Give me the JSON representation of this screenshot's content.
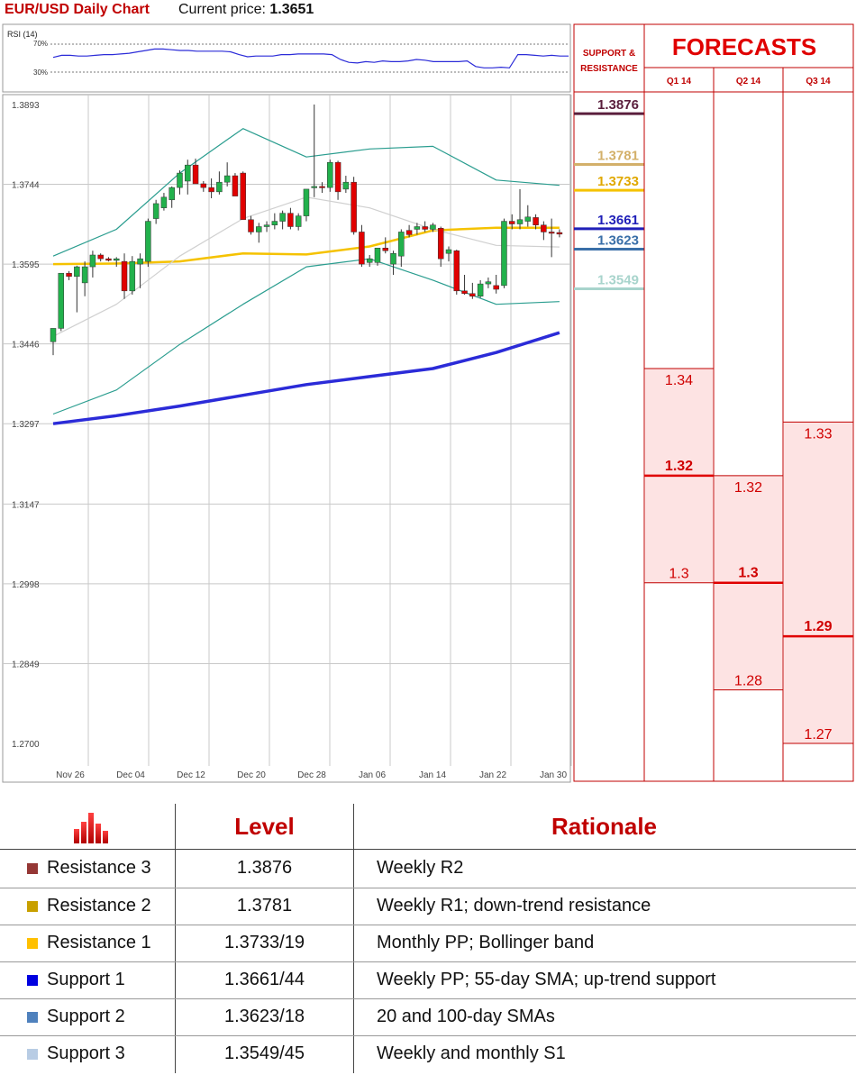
{
  "header": {
    "title": "EUR/USD Daily Chart",
    "price_label": "Current price:",
    "price_value": "1.3651"
  },
  "chart_data": {
    "type": "line",
    "title": "EUR/USD Daily Chart",
    "subplot_label": "RSI (14)",
    "rsi": {
      "ylabels": [
        "70%",
        "30%"
      ],
      "values": [
        51,
        54,
        54,
        53,
        53,
        54,
        55,
        55,
        56,
        57,
        59,
        61,
        63,
        63,
        62,
        61,
        61,
        60,
        60,
        60,
        60,
        59,
        55,
        52,
        53,
        53,
        53,
        55,
        55,
        56,
        56,
        56,
        56,
        55,
        48,
        44,
        43,
        45,
        44,
        46,
        45,
        45,
        46,
        48,
        47,
        45,
        45,
        45,
        45,
        46,
        38,
        36,
        36,
        37,
        36,
        55,
        55,
        54,
        53,
        54,
        53,
        53
      ]
    },
    "y_ticks": [
      "1.3893",
      "1.3744",
      "1.3595",
      "1.3446",
      "1.3297",
      "1.3147",
      "1.2998",
      "1.2849",
      "1.2700"
    ],
    "ylim": [
      1.27,
      1.3893
    ],
    "x_ticks": [
      "Nov 26",
      "Dec 04",
      "Dec 12",
      "Dec 20",
      "Dec 28",
      "Jan 06",
      "Jan 14",
      "Jan 22",
      "Jan 30"
    ],
    "candles": [
      {
        "o": 1.345,
        "h": 1.3475,
        "l": 1.3425,
        "c": 1.3475
      },
      {
        "o": 1.3475,
        "h": 1.3578,
        "l": 1.347,
        "c": 1.3578
      },
      {
        "o": 1.3578,
        "h": 1.3582,
        "l": 1.3565,
        "c": 1.3572
      },
      {
        "o": 1.3572,
        "h": 1.3592,
        "l": 1.3505,
        "c": 1.359
      },
      {
        "o": 1.356,
        "h": 1.36,
        "l": 1.3535,
        "c": 1.359
      },
      {
        "o": 1.359,
        "h": 1.362,
        "l": 1.357,
        "c": 1.3612
      },
      {
        "o": 1.3612,
        "h": 1.3615,
        "l": 1.36,
        "c": 1.3605
      },
      {
        "o": 1.3605,
        "h": 1.3608,
        "l": 1.36,
        "c": 1.3602
      },
      {
        "o": 1.3602,
        "h": 1.3608,
        "l": 1.359,
        "c": 1.3605
      },
      {
        "o": 1.36,
        "h": 1.3615,
        "l": 1.353,
        "c": 1.3545
      },
      {
        "o": 1.3545,
        "h": 1.361,
        "l": 1.3538,
        "c": 1.36
      },
      {
        "o": 1.3595,
        "h": 1.3615,
        "l": 1.355,
        "c": 1.3605
      },
      {
        "o": 1.36,
        "h": 1.368,
        "l": 1.359,
        "c": 1.3675
      },
      {
        "o": 1.368,
        "h": 1.3715,
        "l": 1.367,
        "c": 1.3708
      },
      {
        "o": 1.37,
        "h": 1.3728,
        "l": 1.3695,
        "c": 1.372
      },
      {
        "o": 1.3715,
        "h": 1.374,
        "l": 1.37,
        "c": 1.3738
      },
      {
        "o": 1.3738,
        "h": 1.377,
        "l": 1.3725,
        "c": 1.3765
      },
      {
        "o": 1.375,
        "h": 1.379,
        "l": 1.3725,
        "c": 1.378
      },
      {
        "o": 1.378,
        "h": 1.3792,
        "l": 1.3745,
        "c": 1.3745
      },
      {
        "o": 1.3745,
        "h": 1.375,
        "l": 1.373,
        "c": 1.3738
      },
      {
        "o": 1.3738,
        "h": 1.3755,
        "l": 1.3718,
        "c": 1.373
      },
      {
        "o": 1.373,
        "h": 1.3768,
        "l": 1.3725,
        "c": 1.3748
      },
      {
        "o": 1.3748,
        "h": 1.3785,
        "l": 1.374,
        "c": 1.376
      },
      {
        "o": 1.376,
        "h": 1.3765,
        "l": 1.3725,
        "c": 1.3722
      },
      {
        "o": 1.3765,
        "h": 1.3768,
        "l": 1.368,
        "c": 1.3678
      },
      {
        "o": 1.3678,
        "h": 1.3685,
        "l": 1.365,
        "c": 1.3655
      },
      {
        "o": 1.3655,
        "h": 1.3672,
        "l": 1.3635,
        "c": 1.3665
      },
      {
        "o": 1.3665,
        "h": 1.3675,
        "l": 1.3655,
        "c": 1.3668
      },
      {
        "o": 1.3668,
        "h": 1.369,
        "l": 1.366,
        "c": 1.3675
      },
      {
        "o": 1.3675,
        "h": 1.3695,
        "l": 1.366,
        "c": 1.369
      },
      {
        "o": 1.369,
        "h": 1.37,
        "l": 1.366,
        "c": 1.3665
      },
      {
        "o": 1.3665,
        "h": 1.369,
        "l": 1.3658,
        "c": 1.3685
      },
      {
        "o": 1.3685,
        "h": 1.3735,
        "l": 1.3675,
        "c": 1.3735
      },
      {
        "o": 1.3738,
        "h": 1.3893,
        "l": 1.372,
        "c": 1.374
      },
      {
        "o": 1.374,
        "h": 1.3748,
        "l": 1.3728,
        "c": 1.3738
      },
      {
        "o": 1.3738,
        "h": 1.379,
        "l": 1.373,
        "c": 1.3785
      },
      {
        "o": 1.3785,
        "h": 1.3788,
        "l": 1.3715,
        "c": 1.373
      },
      {
        "o": 1.3735,
        "h": 1.376,
        "l": 1.3728,
        "c": 1.3748
      },
      {
        "o": 1.3748,
        "h": 1.3758,
        "l": 1.365,
        "c": 1.3655
      },
      {
        "o": 1.3655,
        "h": 1.3668,
        "l": 1.359,
        "c": 1.3595
      },
      {
        "o": 1.3598,
        "h": 1.3612,
        "l": 1.359,
        "c": 1.3605
      },
      {
        "o": 1.3598,
        "h": 1.3625,
        "l": 1.3592,
        "c": 1.3625
      },
      {
        "o": 1.3625,
        "h": 1.3645,
        "l": 1.3615,
        "c": 1.362
      },
      {
        "o": 1.3595,
        "h": 1.362,
        "l": 1.3575,
        "c": 1.3615
      },
      {
        "o": 1.361,
        "h": 1.366,
        "l": 1.359,
        "c": 1.3655
      },
      {
        "o": 1.3658,
        "h": 1.3668,
        "l": 1.3645,
        "c": 1.365
      },
      {
        "o": 1.366,
        "h": 1.3672,
        "l": 1.365,
        "c": 1.3665
      },
      {
        "o": 1.3665,
        "h": 1.3675,
        "l": 1.3655,
        "c": 1.366
      },
      {
        "o": 1.366,
        "h": 1.3672,
        "l": 1.3655,
        "c": 1.3668
      },
      {
        "o": 1.3662,
        "h": 1.3665,
        "l": 1.359,
        "c": 1.3605
      },
      {
        "o": 1.3615,
        "h": 1.3628,
        "l": 1.36,
        "c": 1.3622
      },
      {
        "o": 1.362,
        "h": 1.3622,
        "l": 1.3538,
        "c": 1.3545
      },
      {
        "o": 1.3545,
        "h": 1.3575,
        "l": 1.3538,
        "c": 1.354
      },
      {
        "o": 1.354,
        "h": 1.356,
        "l": 1.353,
        "c": 1.3535
      },
      {
        "o": 1.3535,
        "h": 1.3565,
        "l": 1.3532,
        "c": 1.3558
      },
      {
        "o": 1.3558,
        "h": 1.357,
        "l": 1.355,
        "c": 1.3562
      },
      {
        "o": 1.3555,
        "h": 1.3575,
        "l": 1.354,
        "c": 1.3548
      },
      {
        "o": 1.3555,
        "h": 1.368,
        "l": 1.355,
        "c": 1.3675
      },
      {
        "o": 1.3675,
        "h": 1.3688,
        "l": 1.366,
        "c": 1.367
      },
      {
        "o": 1.367,
        "h": 1.3735,
        "l": 1.366,
        "c": 1.3678
      },
      {
        "o": 1.3675,
        "h": 1.3705,
        "l": 1.3665,
        "c": 1.3683
      },
      {
        "o": 1.3682,
        "h": 1.3688,
        "l": 1.366,
        "c": 1.3668
      },
      {
        "o": 1.3668,
        "h": 1.3675,
        "l": 1.364,
        "c": 1.3655
      },
      {
        "o": 1.3655,
        "h": 1.368,
        "l": 1.3608,
        "c": 1.3654
      },
      {
        "o": 1.3654,
        "h": 1.366,
        "l": 1.3645,
        "c": 1.3651
      }
    ],
    "lines": [
      {
        "role": "sma200",
        "color": "#2b2bd8",
        "points": [
          [
            0,
            1.3297
          ],
          [
            8,
            1.3312
          ],
          [
            16,
            1.333
          ],
          [
            24,
            1.335
          ],
          [
            32,
            1.337
          ],
          [
            40,
            1.3385
          ],
          [
            48,
            1.34
          ],
          [
            56,
            1.343
          ],
          [
            64,
            1.3467
          ]
        ]
      },
      {
        "role": "sma55",
        "color": "#f5c200",
        "points": [
          [
            0,
            1.3595
          ],
          [
            8,
            1.3596
          ],
          [
            16,
            1.36
          ],
          [
            24,
            1.3615
          ],
          [
            32,
            1.3613
          ],
          [
            40,
            1.3628
          ],
          [
            48,
            1.3658
          ],
          [
            56,
            1.3663
          ],
          [
            64,
            1.3663
          ]
        ]
      },
      {
        "role": "bollinger_upper",
        "color": "#2a9d8f",
        "points": [
          [
            0,
            1.361
          ],
          [
            8,
            1.366
          ],
          [
            16,
            1.3765
          ],
          [
            24,
            1.3848
          ],
          [
            32,
            1.3795
          ],
          [
            40,
            1.381
          ],
          [
            48,
            1.3815
          ],
          [
            56,
            1.3752
          ],
          [
            64,
            1.3742
          ]
        ]
      },
      {
        "role": "bollinger_lower",
        "color": "#2a9d8f",
        "points": [
          [
            0,
            1.3315
          ],
          [
            8,
            1.336
          ],
          [
            16,
            1.3445
          ],
          [
            24,
            1.352
          ],
          [
            32,
            1.359
          ],
          [
            40,
            1.3605
          ],
          [
            48,
            1.3565
          ],
          [
            56,
            1.352
          ],
          [
            64,
            1.3525
          ]
        ]
      },
      {
        "role": "bollinger_mid",
        "color": "#d0d0d0",
        "points": [
          [
            0,
            1.346
          ],
          [
            8,
            1.352
          ],
          [
            16,
            1.361
          ],
          [
            24,
            1.368
          ],
          [
            32,
            1.372
          ],
          [
            40,
            1.37
          ],
          [
            48,
            1.366
          ],
          [
            56,
            1.363
          ],
          [
            64,
            1.3627
          ]
        ]
      }
    ]
  },
  "sr_panel": {
    "heading": [
      "SUPPORT &",
      "RESISTANCE"
    ],
    "levels": [
      {
        "label": "1.3876",
        "price": 1.3876,
        "color": "#5a1e3c"
      },
      {
        "label": "1.3781",
        "price": 1.3781,
        "color": "#d3b06a"
      },
      {
        "label": "1.3733",
        "price": 1.3733,
        "color": "#f5c200"
      },
      {
        "label": "1.3661",
        "price": 1.3661,
        "color": "#1f1fb8"
      },
      {
        "label": "1.3623",
        "price": 1.3623,
        "color": "#3a6fa8"
      },
      {
        "label": "1.3549",
        "price": 1.3549,
        "color": "#a8d4cc"
      }
    ]
  },
  "forecasts": {
    "title": "FORECASTS",
    "columns": [
      {
        "label": "Q1 14",
        "top": "1.34",
        "mid": "1.32",
        "low": "1.3",
        "top_v": 1.34,
        "mid_v": 1.32,
        "low_v": 1.3
      },
      {
        "label": "Q2 14",
        "top": "1.32",
        "mid": "1.3",
        "low": "1.28",
        "top_v": 1.32,
        "mid_v": 1.3,
        "low_v": 1.28
      },
      {
        "label": "Q3 14",
        "top": "1.33",
        "mid": "1.29",
        "low": "1.27",
        "top_v": 1.33,
        "mid_v": 1.29,
        "low_v": 1.27
      }
    ]
  },
  "table": {
    "icon": "bar-chart-icon",
    "col_level": "Level",
    "col_rationale": "Rationale",
    "rows": [
      {
        "name": "Resistance 3",
        "level": "1.3876",
        "rationale": "Weekly R2",
        "color": "#953735"
      },
      {
        "name": "Resistance 2",
        "level": "1.3781",
        "rationale": "Weekly R1; down-trend resistance",
        "color": "#c8a000"
      },
      {
        "name": "Resistance 1",
        "level": "1.3733/19",
        "rationale": "Monthly PP; Bollinger band",
        "color": "#ffc000"
      },
      {
        "name": "Support 1",
        "level": "1.3661/44",
        "rationale": "Weekly PP; 55-day SMA; up-trend support",
        "color": "#0000e0"
      },
      {
        "name": "Support 2",
        "level": "1.3623/18",
        "rationale": "20 and 100-day SMAs",
        "color": "#4f81bd"
      },
      {
        "name": "Support 3",
        "level": "1.3549/45",
        "rationale": "Weekly and monthly S1",
        "color": "#b8cce4"
      }
    ]
  }
}
